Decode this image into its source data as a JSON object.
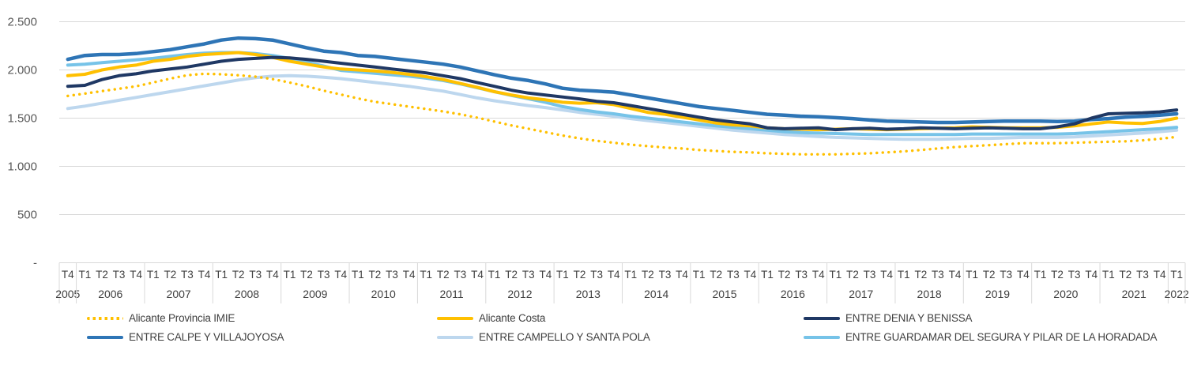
{
  "chart_data": {
    "type": "line",
    "title": "",
    "legend_position": "bottom",
    "y_axis": {
      "ylim": [
        0,
        2500
      ],
      "grid": "horizontal",
      "ticks": [
        {
          "value": 2500,
          "label": "2.500"
        },
        {
          "value": 2000,
          "label": "2.000"
        },
        {
          "value": 1500,
          "label": "1.500"
        },
        {
          "value": 1000,
          "label": "1.000"
        },
        {
          "value": 500,
          "label": "500"
        },
        {
          "value": 0,
          "label": "-"
        }
      ]
    },
    "x_axis": {
      "year_groups": [
        {
          "year": "2005",
          "quarters": [
            "T4"
          ]
        },
        {
          "year": "2006",
          "quarters": [
            "T1",
            "T2",
            "T3",
            "T4"
          ]
        },
        {
          "year": "2007",
          "quarters": [
            "T1",
            "T2",
            "T3",
            "T4"
          ]
        },
        {
          "year": "2008",
          "quarters": [
            "T1",
            "T2",
            "T3",
            "T4"
          ]
        },
        {
          "year": "2009",
          "quarters": [
            "T1",
            "T2",
            "T3",
            "T4"
          ]
        },
        {
          "year": "2010",
          "quarters": [
            "T1",
            "T2",
            "T3",
            "T4"
          ]
        },
        {
          "year": "2011",
          "quarters": [
            "T1",
            "T2",
            "T3",
            "T4"
          ]
        },
        {
          "year": "2012",
          "quarters": [
            "T1",
            "T2",
            "T3",
            "T4"
          ]
        },
        {
          "year": "2013",
          "quarters": [
            "T1",
            "T2",
            "T3",
            "T4"
          ]
        },
        {
          "year": "2014",
          "quarters": [
            "T1",
            "T2",
            "T3",
            "T4"
          ]
        },
        {
          "year": "2015",
          "quarters": [
            "T1",
            "T2",
            "T3",
            "T4"
          ]
        },
        {
          "year": "2016",
          "quarters": [
            "T1",
            "T2",
            "T3",
            "T4"
          ]
        },
        {
          "year": "2017",
          "quarters": [
            "T1",
            "T2",
            "T3",
            "T4"
          ]
        },
        {
          "year": "2018",
          "quarters": [
            "T1",
            "T2",
            "T3",
            "T4"
          ]
        },
        {
          "year": "2019",
          "quarters": [
            "T1",
            "T2",
            "T3",
            "T4"
          ]
        },
        {
          "year": "2020",
          "quarters": [
            "T1",
            "T2",
            "T3",
            "T4"
          ]
        },
        {
          "year": "2021",
          "quarters": [
            "T1",
            "T2",
            "T3",
            "T4"
          ]
        },
        {
          "year": "2022",
          "quarters": [
            "T1"
          ]
        }
      ]
    },
    "series": [
      {
        "name": "Alicante Provincia IMIE",
        "color": "#FFC000",
        "style": "dotted",
        "values": [
          1730,
          1755,
          1780,
          1805,
          1830,
          1870,
          1910,
          1945,
          1960,
          1955,
          1945,
          1930,
          1905,
          1870,
          1830,
          1785,
          1745,
          1705,
          1670,
          1645,
          1620,
          1595,
          1570,
          1540,
          1505,
          1465,
          1425,
          1390,
          1355,
          1320,
          1290,
          1265,
          1245,
          1225,
          1210,
          1195,
          1185,
          1170,
          1160,
          1150,
          1145,
          1135,
          1130,
          1125,
          1125,
          1125,
          1130,
          1135,
          1145,
          1155,
          1170,
          1185,
          1200,
          1210,
          1220,
          1230,
          1240,
          1240,
          1240,
          1245,
          1250,
          1255,
          1260,
          1270,
          1285,
          1305
        ]
      },
      {
        "name": "Alicante Costa",
        "color": "#FFC000",
        "style": "solid",
        "values": [
          1940,
          1955,
          2000,
          2030,
          2050,
          2090,
          2110,
          2140,
          2160,
          2170,
          2180,
          2160,
          2130,
          2090,
          2060,
          2030,
          2010,
          2000,
          1990,
          1975,
          1955,
          1930,
          1900,
          1860,
          1820,
          1775,
          1740,
          1710,
          1690,
          1665,
          1655,
          1660,
          1640,
          1600,
          1560,
          1540,
          1510,
          1480,
          1450,
          1430,
          1420,
          1400,
          1390,
          1385,
          1380,
          1385,
          1390,
          1385,
          1380,
          1385,
          1390,
          1395,
          1400,
          1410,
          1405,
          1400,
          1400,
          1400,
          1405,
          1420,
          1440,
          1460,
          1450,
          1445,
          1465,
          1500
        ]
      },
      {
        "name": "ENTRE DENIA Y BENISSA",
        "color": "#1F3864",
        "style": "solid",
        "values": [
          1830,
          1840,
          1900,
          1940,
          1960,
          1990,
          2010,
          2030,
          2060,
          2090,
          2110,
          2120,
          2130,
          2125,
          2110,
          2090,
          2070,
          2050,
          2030,
          2010,
          1990,
          1970,
          1940,
          1910,
          1870,
          1830,
          1790,
          1760,
          1740,
          1720,
          1700,
          1675,
          1660,
          1630,
          1600,
          1570,
          1540,
          1510,
          1480,
          1460,
          1440,
          1400,
          1390,
          1395,
          1400,
          1380,
          1390,
          1395,
          1385,
          1390,
          1400,
          1395,
          1390,
          1395,
          1400,
          1395,
          1390,
          1390,
          1410,
          1440,
          1500,
          1545,
          1550,
          1555,
          1565,
          1585
        ]
      },
      {
        "name": "ENTRE CALPE Y VILLAJOYOSA",
        "color": "#2E75B6",
        "style": "solid",
        "values": [
          2110,
          2150,
          2160,
          2160,
          2170,
          2190,
          2210,
          2240,
          2270,
          2310,
          2330,
          2325,
          2310,
          2270,
          2230,
          2195,
          2180,
          2150,
          2140,
          2120,
          2100,
          2080,
          2060,
          2030,
          1990,
          1950,
          1915,
          1890,
          1855,
          1810,
          1790,
          1780,
          1770,
          1740,
          1710,
          1680,
          1650,
          1620,
          1600,
          1580,
          1560,
          1540,
          1530,
          1520,
          1515,
          1505,
          1495,
          1480,
          1470,
          1465,
          1460,
          1455,
          1455,
          1460,
          1465,
          1470,
          1470,
          1470,
          1465,
          1470,
          1485,
          1495,
          1510,
          1520,
          1530,
          1545
        ]
      },
      {
        "name": "ENTRE CAMPELLO Y SANTA POLA",
        "color": "#BDD7EE",
        "style": "solid",
        "values": [
          1600,
          1625,
          1655,
          1685,
          1715,
          1745,
          1775,
          1805,
          1835,
          1865,
          1895,
          1920,
          1935,
          1940,
          1935,
          1925,
          1910,
          1890,
          1870,
          1850,
          1830,
          1805,
          1780,
          1745,
          1710,
          1680,
          1655,
          1630,
          1610,
          1585,
          1560,
          1540,
          1520,
          1495,
          1475,
          1455,
          1435,
          1415,
          1395,
          1375,
          1360,
          1345,
          1330,
          1320,
          1310,
          1300,
          1295,
          1290,
          1285,
          1280,
          1280,
          1280,
          1285,
          1290,
          1290,
          1295,
          1300,
          1300,
          1300,
          1305,
          1315,
          1325,
          1335,
          1345,
          1360,
          1375
        ]
      },
      {
        "name": "ENTRE GUARDAMAR DEL SEGURA Y PILAR DE LA HORADADA",
        "color": "#76C3E8",
        "style": "solid",
        "values": [
          2050,
          2060,
          2075,
          2090,
          2105,
          2120,
          2140,
          2160,
          2175,
          2180,
          2180,
          2170,
          2150,
          2120,
          2080,
          2040,
          1995,
          1980,
          1965,
          1950,
          1935,
          1915,
          1890,
          1855,
          1815,
          1775,
          1735,
          1700,
          1665,
          1620,
          1590,
          1565,
          1545,
          1520,
          1500,
          1480,
          1460,
          1440,
          1420,
          1405,
          1390,
          1375,
          1360,
          1350,
          1345,
          1340,
          1335,
          1330,
          1330,
          1330,
          1330,
          1330,
          1330,
          1335,
          1335,
          1335,
          1335,
          1335,
          1335,
          1340,
          1350,
          1360,
          1370,
          1380,
          1390,
          1405
        ]
      }
    ]
  }
}
